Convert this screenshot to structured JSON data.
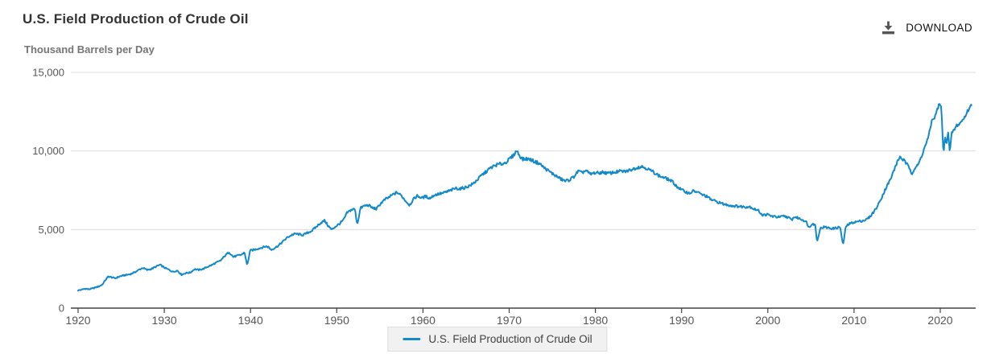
{
  "header": {
    "title": "U.S. Field Production of Crude Oil",
    "download_label": "DOWNLOAD"
  },
  "colors": {
    "line": "#1289c8",
    "grid": "#dcdcdc",
    "axis": "#444444",
    "tick_label": "#555555",
    "title": "#333333",
    "subtitle": "#757575",
    "legend_bg": "#f1f1f1",
    "legend_border": "#dddddd",
    "icon": "#555555"
  },
  "chart_data": {
    "type": "line",
    "title": "U.S. Field Production of Crude Oil",
    "xlabel": "",
    "ylabel": "Thousand Barrels per Day",
    "xlim": [
      1919.2,
      2024.2
    ],
    "ylim": [
      0,
      15000
    ],
    "grid": "horizontal",
    "x_ticks": [
      1920,
      1930,
      1940,
      1950,
      1960,
      1970,
      1980,
      1990,
      2000,
      2010,
      2020
    ],
    "y_ticks": [
      {
        "value": 0,
        "label": "0"
      },
      {
        "value": 5000,
        "label": "5,000"
      },
      {
        "value": 10000,
        "label": "10,000"
      },
      {
        "value": 15000,
        "label": "15,000"
      }
    ],
    "legend": {
      "position": "bottom",
      "entries": [
        "U.S. Field Production of Crude Oil"
      ]
    },
    "series": [
      {
        "name": "U.S. Field Production of Crude Oil",
        "unit": "Thousand Barrels per Day",
        "color": "#1289c8",
        "frequency": "monthly (values estimated from plot; [decimal_year, thousand_bbl_per_day])",
        "points": [
          [
            1920.0,
            1130
          ],
          [
            1920.4,
            1170
          ],
          [
            1920.8,
            1240
          ],
          [
            1921.2,
            1200
          ],
          [
            1921.6,
            1240
          ],
          [
            1922.0,
            1310
          ],
          [
            1922.4,
            1380
          ],
          [
            1922.8,
            1490
          ],
          [
            1923.2,
            1810
          ],
          [
            1923.5,
            2010
          ],
          [
            1923.9,
            1960
          ],
          [
            1924.3,
            1900
          ],
          [
            1924.7,
            1990
          ],
          [
            1925.1,
            2060
          ],
          [
            1925.6,
            2110
          ],
          [
            1926.1,
            2170
          ],
          [
            1926.6,
            2290
          ],
          [
            1927.1,
            2450
          ],
          [
            1927.5,
            2560
          ],
          [
            1928.0,
            2430
          ],
          [
            1928.5,
            2490
          ],
          [
            1929.0,
            2630
          ],
          [
            1929.5,
            2760
          ],
          [
            1930.0,
            2580
          ],
          [
            1930.5,
            2450
          ],
          [
            1931.0,
            2310
          ],
          [
            1931.5,
            2390
          ],
          [
            1932.0,
            2130
          ],
          [
            1932.5,
            2230
          ],
          [
            1933.0,
            2260
          ],
          [
            1933.5,
            2480
          ],
          [
            1934.0,
            2430
          ],
          [
            1934.5,
            2490
          ],
          [
            1935.0,
            2630
          ],
          [
            1935.5,
            2740
          ],
          [
            1936.0,
            2890
          ],
          [
            1936.5,
            3010
          ],
          [
            1937.0,
            3310
          ],
          [
            1937.5,
            3570
          ],
          [
            1938.0,
            3260
          ],
          [
            1938.5,
            3340
          ],
          [
            1939.0,
            3410
          ],
          [
            1939.3,
            3560
          ],
          [
            1939.62,
            2700
          ],
          [
            1939.95,
            3660
          ],
          [
            1940.4,
            3710
          ],
          [
            1940.9,
            3790
          ],
          [
            1941.3,
            3850
          ],
          [
            1941.8,
            3930
          ],
          [
            1942.1,
            3880
          ],
          [
            1942.4,
            3710
          ],
          [
            1942.9,
            3860
          ],
          [
            1943.3,
            4010
          ],
          [
            1943.8,
            4260
          ],
          [
            1944.3,
            4510
          ],
          [
            1944.8,
            4660
          ],
          [
            1945.2,
            4730
          ],
          [
            1945.7,
            4690
          ],
          [
            1946.1,
            4650
          ],
          [
            1946.6,
            4790
          ],
          [
            1947.1,
            4920
          ],
          [
            1947.6,
            5160
          ],
          [
            1948.1,
            5410
          ],
          [
            1948.6,
            5570
          ],
          [
            1949.0,
            5240
          ],
          [
            1949.4,
            4990
          ],
          [
            1949.9,
            5210
          ],
          [
            1950.3,
            5360
          ],
          [
            1950.8,
            5620
          ],
          [
            1951.2,
            6070
          ],
          [
            1951.7,
            6260
          ],
          [
            1952.1,
            6310
          ],
          [
            1952.38,
            5320
          ],
          [
            1952.75,
            6360
          ],
          [
            1953.2,
            6510
          ],
          [
            1953.7,
            6550
          ],
          [
            1954.1,
            6390
          ],
          [
            1954.6,
            6310
          ],
          [
            1955.1,
            6660
          ],
          [
            1955.6,
            6910
          ],
          [
            1956.1,
            7060
          ],
          [
            1956.6,
            7260
          ],
          [
            1957.0,
            7360
          ],
          [
            1957.5,
            7160
          ],
          [
            1958.0,
            6810
          ],
          [
            1958.45,
            6560
          ],
          [
            1958.95,
            6960
          ],
          [
            1959.35,
            7150
          ],
          [
            1959.85,
            7010
          ],
          [
            1960.3,
            7110
          ],
          [
            1960.8,
            6990
          ],
          [
            1961.3,
            7190
          ],
          [
            1961.8,
            7260
          ],
          [
            1962.3,
            7310
          ],
          [
            1962.8,
            7410
          ],
          [
            1963.3,
            7510
          ],
          [
            1963.8,
            7630
          ],
          [
            1964.3,
            7590
          ],
          [
            1964.8,
            7660
          ],
          [
            1965.3,
            7760
          ],
          [
            1965.8,
            7910
          ],
          [
            1966.3,
            8160
          ],
          [
            1966.8,
            8460
          ],
          [
            1967.3,
            8660
          ],
          [
            1967.8,
            8910
          ],
          [
            1968.3,
            9060
          ],
          [
            1968.8,
            9160
          ],
          [
            1969.3,
            9190
          ],
          [
            1969.7,
            9310
          ],
          [
            1970.1,
            9520
          ],
          [
            1970.5,
            9720
          ],
          [
            1970.87,
            10040
          ],
          [
            1971.2,
            9710
          ],
          [
            1971.6,
            9460
          ],
          [
            1972.0,
            9510
          ],
          [
            1972.5,
            9450
          ],
          [
            1973.0,
            9310
          ],
          [
            1973.5,
            9210
          ],
          [
            1974.0,
            8960
          ],
          [
            1974.5,
            8760
          ],
          [
            1975.0,
            8560
          ],
          [
            1975.5,
            8390
          ],
          [
            1976.0,
            8210
          ],
          [
            1976.5,
            8090
          ],
          [
            1977.0,
            8160
          ],
          [
            1977.5,
            8360
          ],
          [
            1978.0,
            8710
          ],
          [
            1978.4,
            8610
          ],
          [
            1978.9,
            8760
          ],
          [
            1979.4,
            8510
          ],
          [
            1979.9,
            8610
          ],
          [
            1980.4,
            8590
          ],
          [
            1980.9,
            8660
          ],
          [
            1981.4,
            8570
          ],
          [
            1981.9,
            8610
          ],
          [
            1982.4,
            8660
          ],
          [
            1982.9,
            8710
          ],
          [
            1983.4,
            8690
          ],
          [
            1983.9,
            8760
          ],
          [
            1984.4,
            8860
          ],
          [
            1984.9,
            8960
          ],
          [
            1985.4,
            9010
          ],
          [
            1985.9,
            8910
          ],
          [
            1986.4,
            8760
          ],
          [
            1986.9,
            8610
          ],
          [
            1987.4,
            8410
          ],
          [
            1987.9,
            8310
          ],
          [
            1988.4,
            8210
          ],
          [
            1988.9,
            8060
          ],
          [
            1989.4,
            7760
          ],
          [
            1989.9,
            7560
          ],
          [
            1990.4,
            7410
          ],
          [
            1990.9,
            7310
          ],
          [
            1991.4,
            7460
          ],
          [
            1991.9,
            7360
          ],
          [
            1992.4,
            7210
          ],
          [
            1992.9,
            7110
          ],
          [
            1993.4,
            6910
          ],
          [
            1993.9,
            6810
          ],
          [
            1994.4,
            6710
          ],
          [
            1994.9,
            6610
          ],
          [
            1995.4,
            6560
          ],
          [
            1995.9,
            6510
          ],
          [
            1996.4,
            6490
          ],
          [
            1996.9,
            6460
          ],
          [
            1997.4,
            6440
          ],
          [
            1997.9,
            6460
          ],
          [
            1998.4,
            6310
          ],
          [
            1998.9,
            6210
          ],
          [
            1999.4,
            5910
          ],
          [
            1999.9,
            5960
          ],
          [
            2000.4,
            5860
          ],
          [
            2000.9,
            5810
          ],
          [
            2001.4,
            5790
          ],
          [
            2001.9,
            5860
          ],
          [
            2002.4,
            5760
          ],
          [
            2002.75,
            5610
          ],
          [
            2003.1,
            5810
          ],
          [
            2003.6,
            5710
          ],
          [
            2004.1,
            5610
          ],
          [
            2004.5,
            5460
          ],
          [
            2004.78,
            5110
          ],
          [
            2005.15,
            5410
          ],
          [
            2005.5,
            5260
          ],
          [
            2005.72,
            4200
          ],
          [
            2006.05,
            5060
          ],
          [
            2006.5,
            5160
          ],
          [
            2007.0,
            5110
          ],
          [
            2007.5,
            5060
          ],
          [
            2008.0,
            5110
          ],
          [
            2008.4,
            5160
          ],
          [
            2008.72,
            3970
          ],
          [
            2009.05,
            5210
          ],
          [
            2009.45,
            5360
          ],
          [
            2009.95,
            5460
          ],
          [
            2010.45,
            5510
          ],
          [
            2010.95,
            5560
          ],
          [
            2011.35,
            5610
          ],
          [
            2011.85,
            5810
          ],
          [
            2012.25,
            6110
          ],
          [
            2012.75,
            6510
          ],
          [
            2013.25,
            7110
          ],
          [
            2013.75,
            7710
          ],
          [
            2014.25,
            8210
          ],
          [
            2014.75,
            8960
          ],
          [
            2015.3,
            9630
          ],
          [
            2015.75,
            9410
          ],
          [
            2016.05,
            9210
          ],
          [
            2016.45,
            8910
          ],
          [
            2016.72,
            8570
          ],
          [
            2017.05,
            8910
          ],
          [
            2017.45,
            9110
          ],
          [
            2017.85,
            9710
          ],
          [
            2018.25,
            10310
          ],
          [
            2018.65,
            10910
          ],
          [
            2019.0,
            11900
          ],
          [
            2019.4,
            12200
          ],
          [
            2019.88,
            13000
          ],
          [
            2020.12,
            12750
          ],
          [
            2020.38,
            9710
          ],
          [
            2020.55,
            10950
          ],
          [
            2020.72,
            10500
          ],
          [
            2020.92,
            11200
          ],
          [
            2021.1,
            9860
          ],
          [
            2021.35,
            11210
          ],
          [
            2021.6,
            11310
          ],
          [
            2021.9,
            11610
          ],
          [
            2022.2,
            11710
          ],
          [
            2022.5,
            11910
          ],
          [
            2022.8,
            12110
          ],
          [
            2023.1,
            12460
          ],
          [
            2023.35,
            12710
          ],
          [
            2023.6,
            12900
          ]
        ]
      }
    ]
  }
}
